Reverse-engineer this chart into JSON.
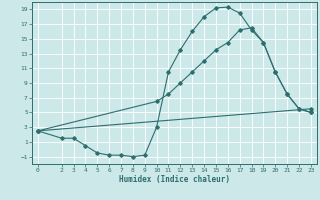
{
  "title": "",
  "xlabel": "Humidex (Indice chaleur)",
  "bg_color": "#cce8e8",
  "grid_color": "#ffffff",
  "line_color": "#2d6e6e",
  "xlim": [
    -0.5,
    23.5
  ],
  "ylim": [
    -2,
    20
  ],
  "xticks": [
    0,
    2,
    3,
    4,
    5,
    6,
    7,
    8,
    9,
    10,
    11,
    12,
    13,
    14,
    15,
    16,
    17,
    18,
    19,
    20,
    21,
    22,
    23
  ],
  "yticks": [
    -1,
    1,
    3,
    5,
    7,
    9,
    11,
    13,
    15,
    17,
    19
  ],
  "line1_x": [
    0,
    2,
    3,
    4,
    5,
    6,
    7,
    8,
    9,
    10,
    11,
    12,
    13,
    14,
    15,
    16,
    17,
    18,
    19,
    20,
    21,
    22,
    23
  ],
  "line1_y": [
    2.5,
    1.5,
    1.5,
    0.5,
    -0.5,
    -0.8,
    -0.8,
    -1.0,
    -0.8,
    3.0,
    10.5,
    13.5,
    16.0,
    18.0,
    19.2,
    19.3,
    18.5,
    16.2,
    14.5,
    10.5,
    7.5,
    5.5,
    5.0
  ],
  "line2_x": [
    0,
    10,
    11,
    12,
    13,
    14,
    15,
    16,
    17,
    18,
    19,
    20,
    21,
    22,
    23
  ],
  "line2_y": [
    2.5,
    6.5,
    7.5,
    9.0,
    10.5,
    12.0,
    13.5,
    14.5,
    16.2,
    16.5,
    14.5,
    10.5,
    7.5,
    5.5,
    5.0
  ],
  "line3_x": [
    0,
    23
  ],
  "line3_y": [
    2.5,
    5.5
  ]
}
